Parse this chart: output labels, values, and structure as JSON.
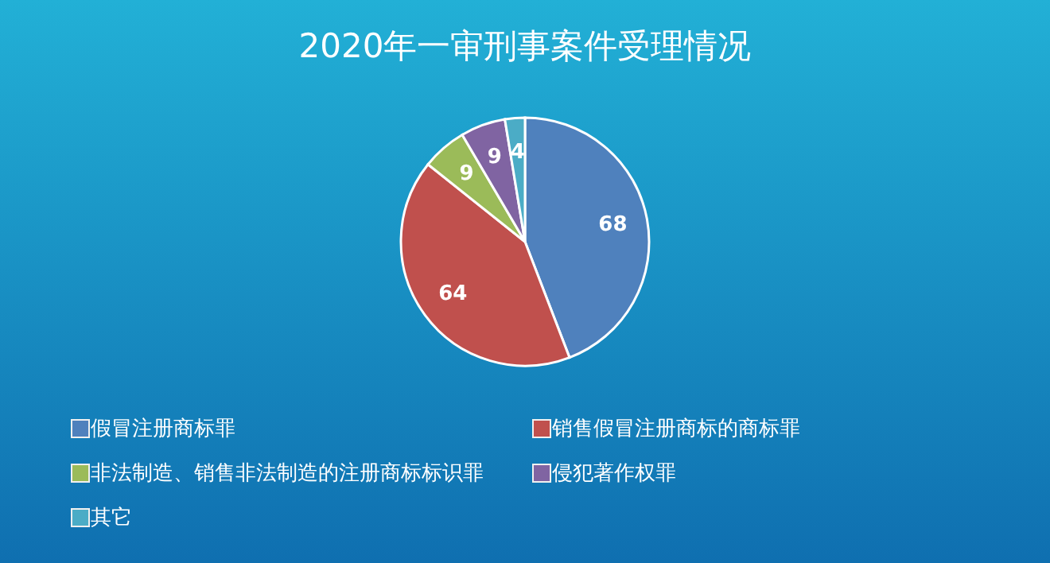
{
  "chart_data": {
    "type": "pie",
    "title": "2020年一审刑事案件受理情况",
    "categories": [
      "假冒注册商标罪",
      "销售假冒注册商标的商标罪",
      "非法制造、销售非法制造的注册商标标识罪",
      "侵犯著作权罪",
      "其它"
    ],
    "values": [
      68,
      64,
      9,
      9,
      4
    ],
    "colors": [
      "#4f81bd",
      "#c0504d",
      "#9bbb59",
      "#8064a2",
      "#4bacc6"
    ],
    "data_labels": true,
    "legend": "bottom"
  }
}
